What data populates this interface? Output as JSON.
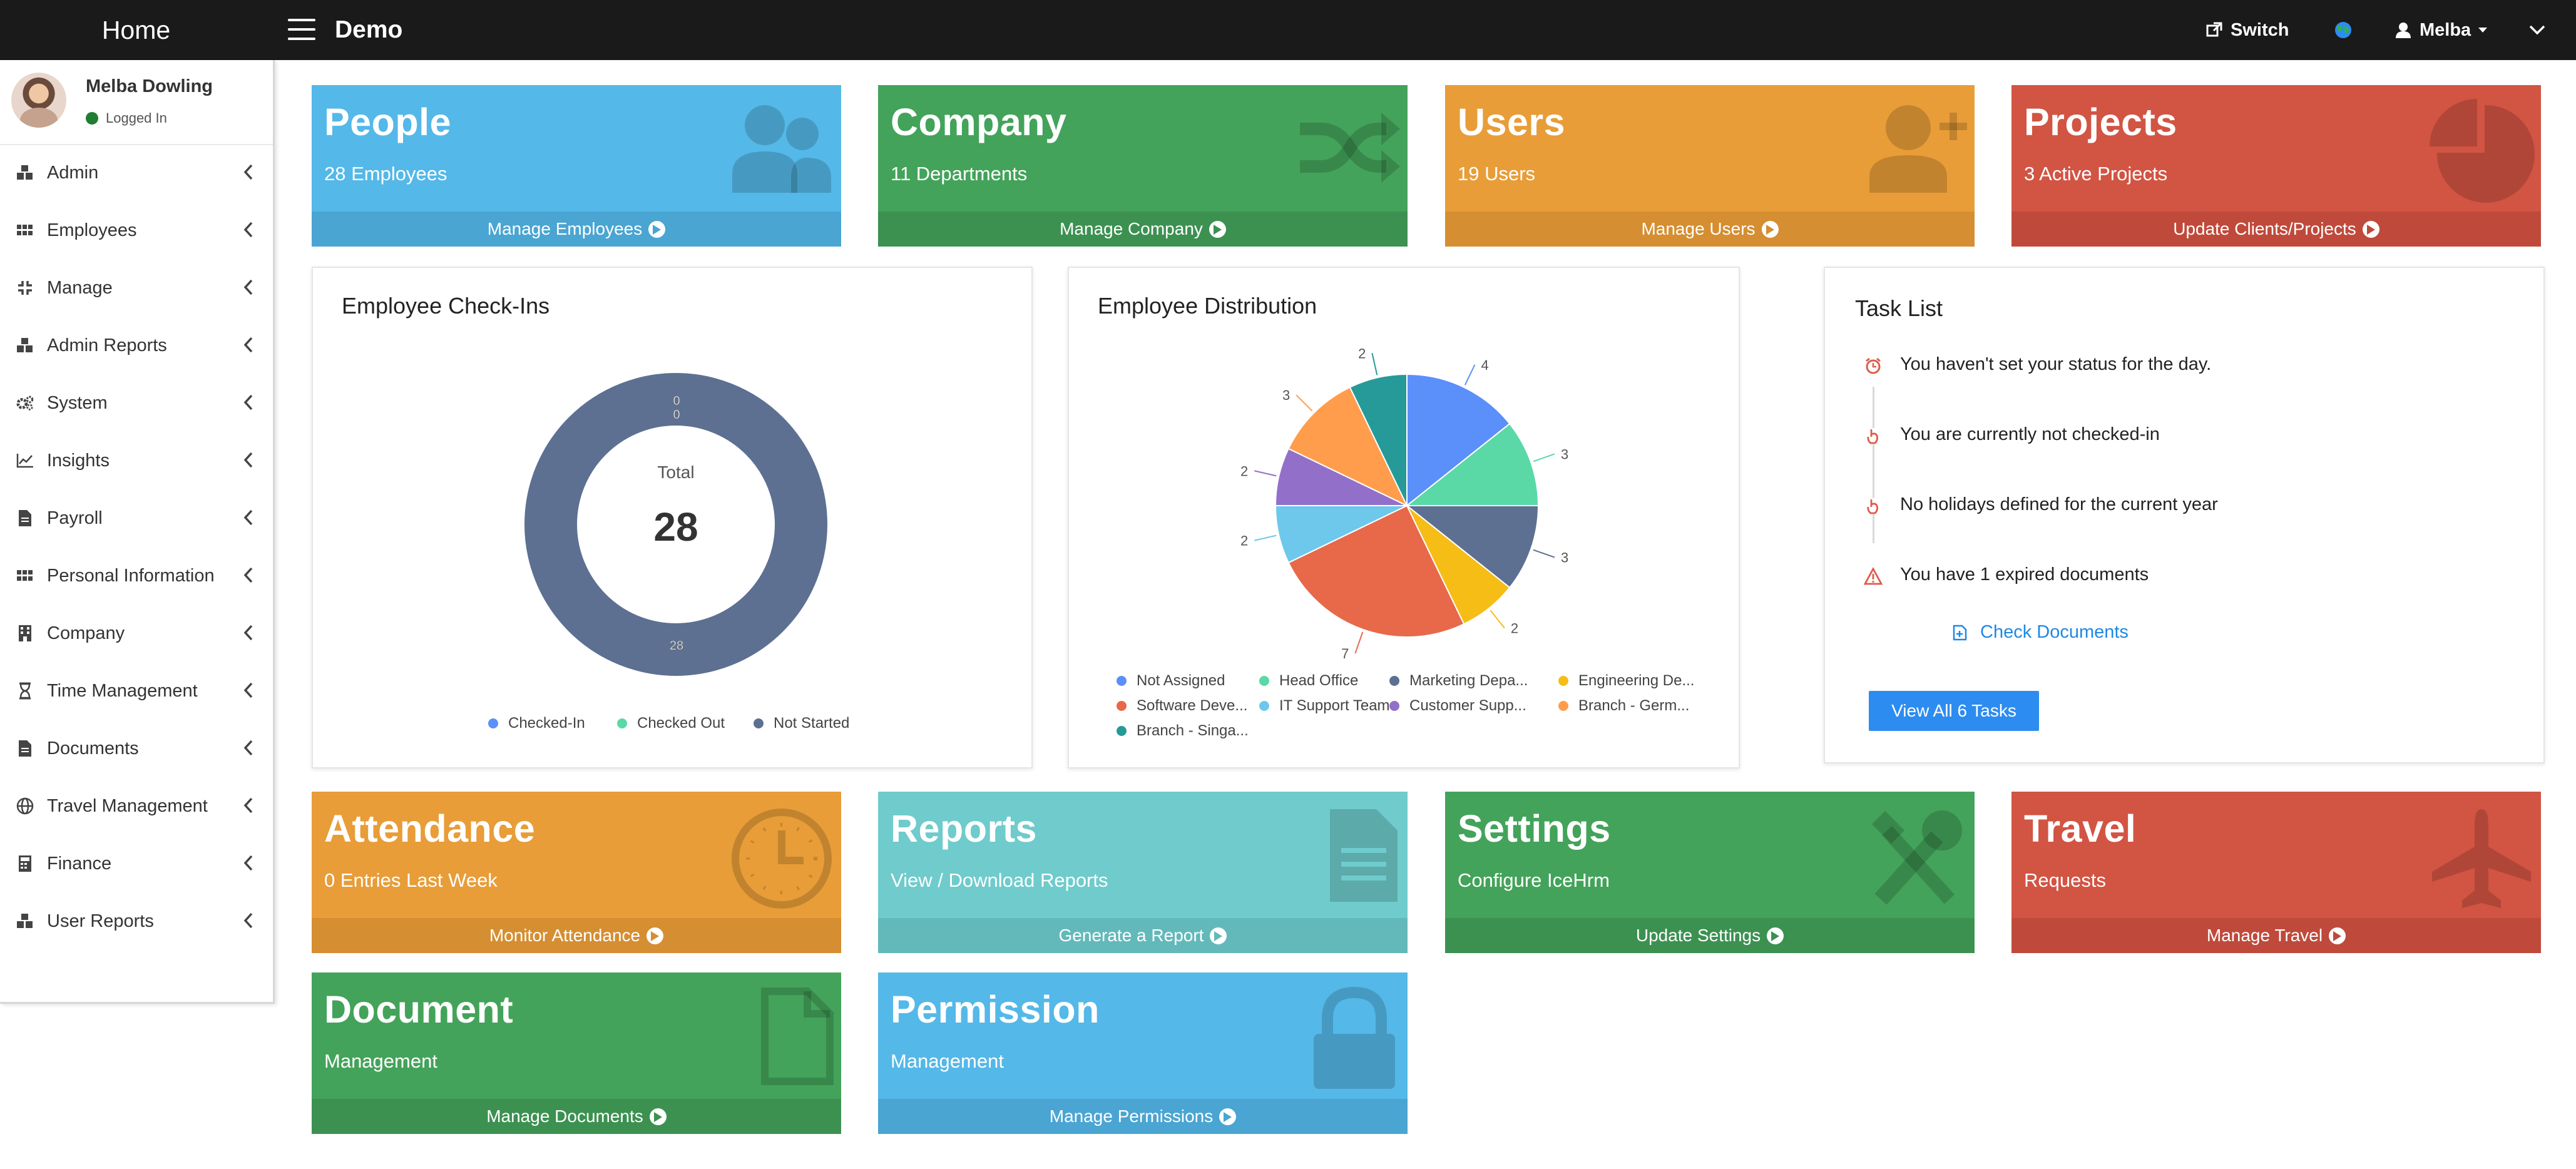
{
  "topbar": {
    "brand": "Home",
    "app_title": "Demo",
    "switch_label": "Switch",
    "user_label": "Melba",
    "icons": [
      "menu-icon",
      "external-link-icon",
      "globe-icon",
      "user-icon",
      "caret-down-icon",
      "chevron-down-icon"
    ]
  },
  "sidebar": {
    "user": {
      "name": "Melba Dowling",
      "status": "Logged In",
      "status_color": "#1e7e34"
    },
    "items": [
      {
        "label": "Admin",
        "icon": "cubes-icon"
      },
      {
        "label": "Employees",
        "icon": "grid-icon"
      },
      {
        "label": "Manage",
        "icon": "compress-icon"
      },
      {
        "label": "Admin Reports",
        "icon": "cubes-icon"
      },
      {
        "label": "System",
        "icon": "cogs-icon"
      },
      {
        "label": "Insights",
        "icon": "line-chart-icon"
      },
      {
        "label": "Payroll",
        "icon": "file-icon"
      },
      {
        "label": "Personal Information",
        "icon": "grid-icon"
      },
      {
        "label": "Company",
        "icon": "building-icon"
      },
      {
        "label": "Time Management",
        "icon": "hourglass-icon"
      },
      {
        "label": "Documents",
        "icon": "file-icon"
      },
      {
        "label": "Travel Management",
        "icon": "globe-icon"
      },
      {
        "label": "Finance",
        "icon": "calculator-icon"
      },
      {
        "label": "User Reports",
        "icon": "cubes-icon"
      }
    ]
  },
  "tiles": {
    "people": {
      "title": "People",
      "sub": "28 Employees",
      "footer": "Manage Employees",
      "color": "#54b8e8",
      "footer_color": "#4aa5d2"
    },
    "company": {
      "title": "Company",
      "sub": "11 Departments",
      "footer": "Manage Company",
      "color": "#43a35a",
      "footer_color": "#3c9151"
    },
    "users": {
      "title": "Users",
      "sub": "19 Users",
      "footer": "Manage Users",
      "color": "#e89d38",
      "footer_color": "#d58e31"
    },
    "projects": {
      "title": "Projects",
      "sub": "3 Active Projects",
      "footer": "Update Clients/Projects",
      "color": "#d25443",
      "footer_color": "#bf4a3b"
    },
    "attendance": {
      "title": "Attendance",
      "sub": "0 Entries Last Week",
      "footer": "Monitor Attendance",
      "color": "#e89d38",
      "footer_color": "#d58e31"
    },
    "reports": {
      "title": "Reports",
      "sub": "View / Download Reports",
      "footer": "Generate a Report",
      "color": "#6fcbcc",
      "footer_color": "#63b9ba"
    },
    "settings": {
      "title": "Settings",
      "sub": "Configure IceHrm",
      "footer": "Update Settings",
      "color": "#43a35a",
      "footer_color": "#3c9151"
    },
    "travel": {
      "title": "Travel",
      "sub": "Requests",
      "footer": "Manage Travel",
      "color": "#d25443",
      "footer_color": "#bf4a3b"
    },
    "document": {
      "title": "Document",
      "sub": "Management",
      "footer": "Manage Documents",
      "color": "#43a35a",
      "footer_color": "#3c9151"
    },
    "permission": {
      "title": "Permission",
      "sub": "Management",
      "footer": "Manage Permissions",
      "color": "#54b8e8",
      "footer_color": "#4aa5d2"
    }
  },
  "checkins": {
    "title": "Employee Check-Ins",
    "total_label": "Total",
    "total_value": "28",
    "legend": [
      "Checked-In",
      "Checked Out",
      "Not Started"
    ],
    "colors": [
      "#5b8ff9",
      "#5ad8a6",
      "#5d7092"
    ]
  },
  "distribution": {
    "title": "Employee Distribution",
    "legend": [
      "Not Assigned",
      "Head Office",
      "Marketing Depa...",
      "Engineering De...",
      "Software Deve...",
      "IT Support Team",
      "Customer Supp...",
      "Branch - Germ...",
      "Branch - Singa..."
    ]
  },
  "chart_data": [
    {
      "type": "pie",
      "title": "Employee Check-Ins",
      "categories": [
        "Checked-In",
        "Checked Out",
        "Not Started"
      ],
      "values": [
        0,
        0,
        28
      ],
      "total": 28,
      "donut": true,
      "legend_position": "bottom",
      "colors": [
        "#5b8ff9",
        "#5ad8a6",
        "#5d7092"
      ]
    },
    {
      "type": "pie",
      "title": "Employee Distribution",
      "categories": [
        "Not Assigned",
        "Head Office",
        "Marketing Depa...",
        "Engineering De...",
        "Software Deve...",
        "IT Support Team",
        "Customer Supp...",
        "Branch - Germ...",
        "Branch - Singa..."
      ],
      "values": [
        4,
        3,
        3,
        2,
        7,
        2,
        2,
        3,
        2
      ],
      "legend_position": "bottom",
      "colors": [
        "#5b8ff9",
        "#5ad8a6",
        "#5d7092",
        "#f6bd16",
        "#e8684a",
        "#6dc8ec",
        "#9270ca",
        "#ff9d4d",
        "#269a99"
      ]
    }
  ],
  "tasks": {
    "title": "Task List",
    "items": [
      "You haven't set your status for the day.",
      "You are currently not checked-in",
      "No holidays defined for the current year",
      "You have 1 expired documents"
    ],
    "link": "Check Documents",
    "button": "View All 6 Tasks"
  }
}
